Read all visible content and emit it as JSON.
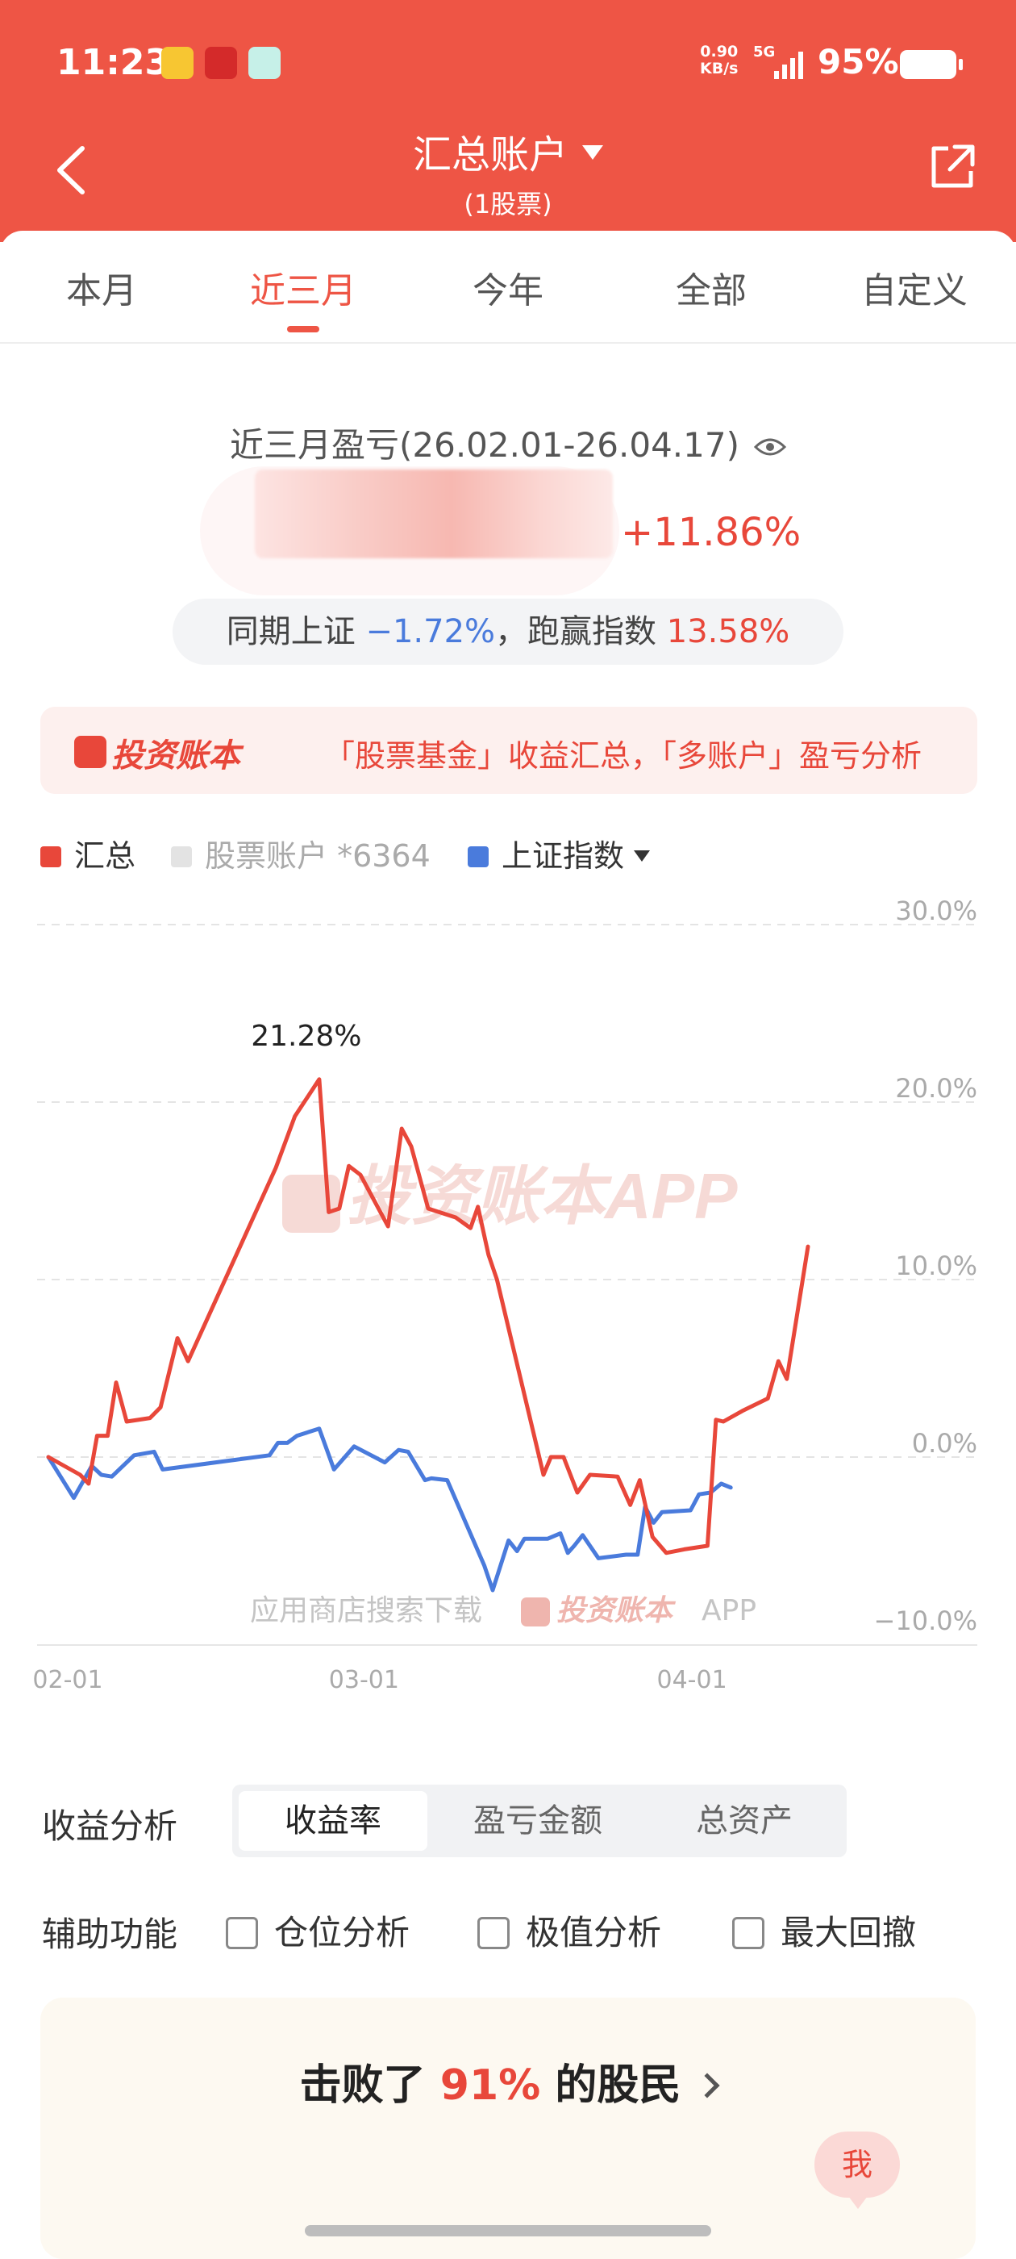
{
  "status_bar": {
    "time": "11:23",
    "net_speed_value": "0.90",
    "net_speed_unit": "KB/s",
    "network_type": "5G",
    "battery_percent": "95%"
  },
  "nav": {
    "title": "汇总账户",
    "subtitle": "(1股票)"
  },
  "tabs": [
    {
      "label": "本月"
    },
    {
      "label": "近三月"
    },
    {
      "label": "今年"
    },
    {
      "label": "全部"
    },
    {
      "label": "自定义"
    }
  ],
  "active_tab": "近三月",
  "summary": {
    "period_label": "近三月盈亏(26.02.01-26.04.17)",
    "return_pct": "+11.86%",
    "index_label": "同期上证",
    "index_pct": "−1.72%",
    "separator": "，",
    "beat_label": "跑赢指数",
    "beat_pct": "13.58%"
  },
  "promo": {
    "logo_text": "投资账本",
    "message": "「股票基金」收益汇总，「多账户」盈亏分析"
  },
  "legend": {
    "total": "汇总",
    "stock_account": "股票账户 *6364",
    "index": "上证指数"
  },
  "colors": {
    "brand": "#ee5545",
    "total_line": "#e8473a",
    "index_line": "#4a7bdc",
    "stock_account": "#e3e3e3"
  },
  "chart_data": {
    "type": "line",
    "y_ticks": [
      "30.0%",
      "20.0%",
      "10.0%",
      "0.0%",
      "−10.0%"
    ],
    "x_ticks": [
      "02-01",
      "03-01",
      "04-01"
    ],
    "ylim": [
      -10,
      30
    ],
    "xlim": [
      0,
      75
    ],
    "peak_label": "21.28%",
    "watermark": "投资账本APP",
    "footer_note_prefix": "应用商店搜索下载",
    "footer_note_brand": "投资账本",
    "footer_note_suffix": "APP",
    "series": [
      {
        "name": "汇总",
        "points": [
          [
            0,
            0
          ],
          [
            3,
            -1
          ],
          [
            3.8,
            -1.5
          ],
          [
            4.6,
            1.2
          ],
          [
            5.6,
            1.2
          ],
          [
            6.4,
            4.2
          ],
          [
            7.4,
            2
          ],
          [
            9.6,
            2.2
          ],
          [
            10.6,
            2.8
          ],
          [
            12.2,
            6.7
          ],
          [
            13.2,
            5.4
          ],
          [
            21.5,
            16.3
          ],
          [
            23.3,
            19.2
          ],
          [
            25.6,
            21.28
          ],
          [
            26.5,
            13.8
          ],
          [
            27.5,
            14
          ],
          [
            28.4,
            16.4
          ],
          [
            29.5,
            15.9
          ],
          [
            32.1,
            13
          ],
          [
            33.4,
            18.5
          ],
          [
            34.3,
            17.5
          ],
          [
            35.9,
            14
          ],
          [
            38.5,
            13.5
          ],
          [
            39.9,
            12.9
          ],
          [
            40.6,
            14.1
          ],
          [
            41.6,
            11.4
          ],
          [
            42.4,
            10
          ],
          [
            46.8,
            -1
          ],
          [
            47.5,
            0
          ],
          [
            48.7,
            0
          ],
          [
            50,
            -2
          ],
          [
            51.2,
            -1
          ],
          [
            53.8,
            -1.1
          ],
          [
            55,
            -2.7
          ],
          [
            55.9,
            -1.3
          ],
          [
            57.1,
            -4.5
          ],
          [
            58.4,
            -5.4
          ],
          [
            60.1,
            -5.2
          ],
          [
            62.3,
            -5
          ],
          [
            63.1,
            2.1
          ],
          [
            63.8,
            2
          ],
          [
            65.6,
            2.6
          ],
          [
            68,
            3.3
          ],
          [
            69,
            5.4
          ],
          [
            69.8,
            4.4
          ],
          [
            71.8,
            11.86
          ]
        ]
      },
      {
        "name": "上证指数",
        "points": [
          [
            0,
            0
          ],
          [
            2.4,
            -2.3
          ],
          [
            4.1,
            -0.5
          ],
          [
            5,
            -1
          ],
          [
            6,
            -1.1
          ],
          [
            8.1,
            0.1
          ],
          [
            10,
            0.3
          ],
          [
            10.8,
            -0.7
          ],
          [
            20.9,
            0.1
          ],
          [
            21.7,
            0.8
          ],
          [
            22.6,
            0.8
          ],
          [
            23.5,
            1.2
          ],
          [
            25.6,
            1.6
          ],
          [
            27,
            -0.7
          ],
          [
            28.9,
            0.6
          ],
          [
            31.8,
            -0.3
          ],
          [
            33.1,
            0.4
          ],
          [
            34,
            0.3
          ],
          [
            35.6,
            -1.3
          ],
          [
            36.2,
            -1.2
          ],
          [
            37.7,
            -1.3
          ],
          [
            41.2,
            -6.1
          ],
          [
            42,
            -7.5
          ],
          [
            43.5,
            -4.7
          ],
          [
            44.3,
            -5.3
          ],
          [
            45,
            -4.6
          ],
          [
            47.2,
            -4.6
          ],
          [
            48.4,
            -4.3
          ],
          [
            49.1,
            -5.4
          ],
          [
            49.7,
            -5
          ],
          [
            50.5,
            -4.4
          ],
          [
            52,
            -5.7
          ],
          [
            54.6,
            -5.5
          ],
          [
            55.7,
            -5.5
          ],
          [
            56.4,
            -2.8
          ],
          [
            57.2,
            -3.7
          ],
          [
            58,
            -3.1
          ],
          [
            60.7,
            -3
          ],
          [
            61.5,
            -2.1
          ],
          [
            62.6,
            -2
          ],
          [
            63.6,
            -1.5
          ],
          [
            64.5,
            -1.72
          ]
        ]
      }
    ]
  },
  "analysis": {
    "label": "收益分析",
    "options": [
      "收益率",
      "盈亏金额",
      "总资产"
    ],
    "selected": "收益率"
  },
  "aux": {
    "label": "辅助功能",
    "options": [
      "仓位分析",
      "极值分析",
      "最大回撤"
    ]
  },
  "beat": {
    "prefix": "击败了",
    "pct": "91%",
    "suffix": "的股民"
  },
  "me_label": "我"
}
